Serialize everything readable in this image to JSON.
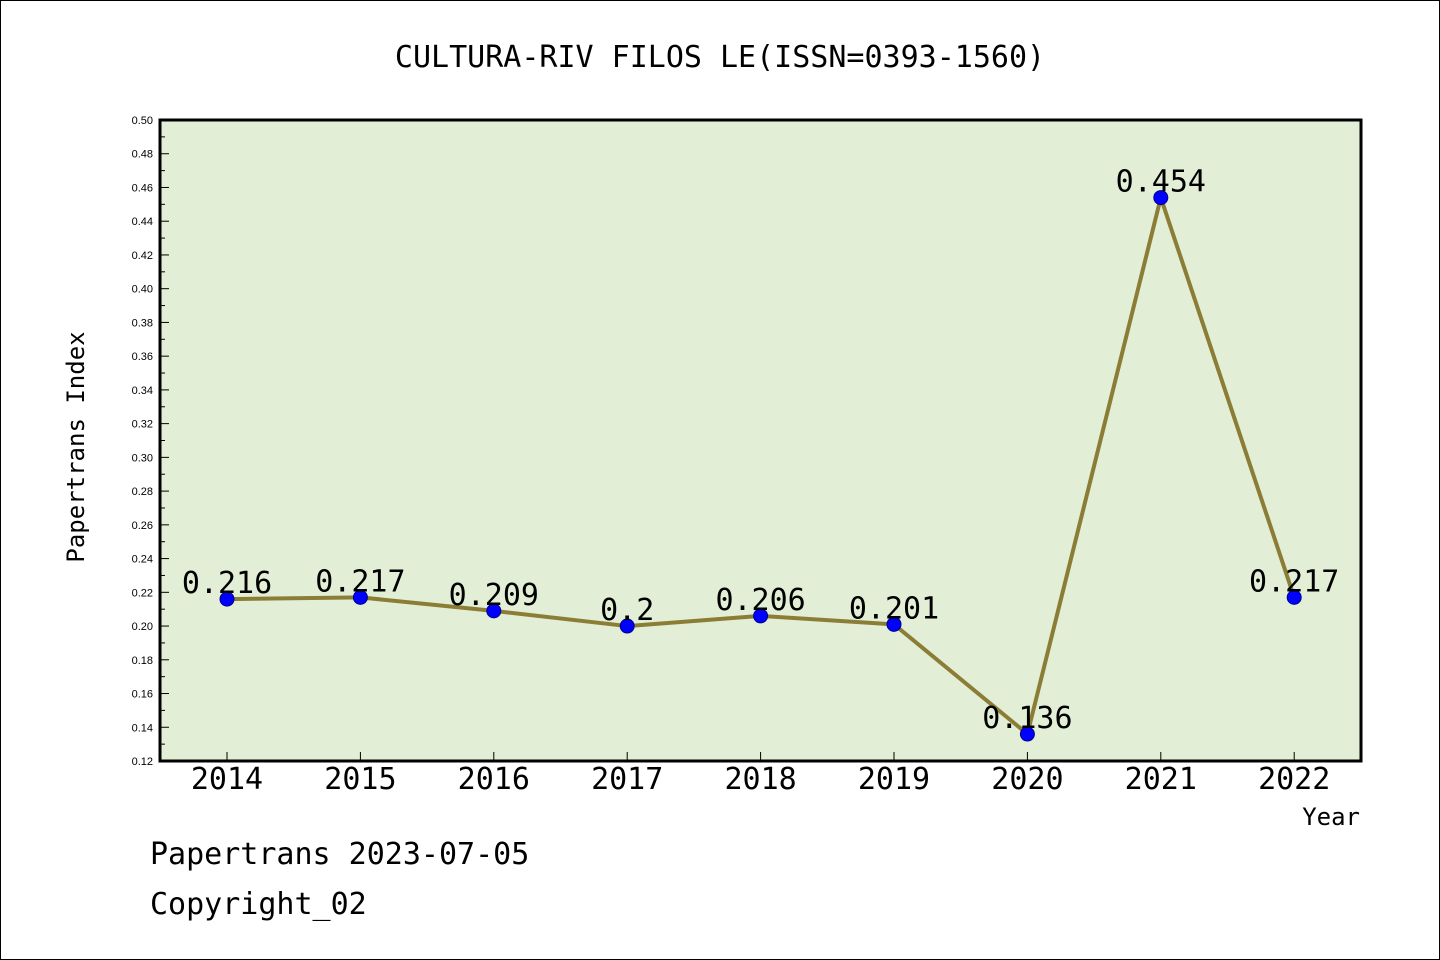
{
  "chart_data": {
    "type": "line",
    "title": "CULTURA-RIV FILOS LE(ISSN=0393-1560)",
    "xlabel": "Year",
    "ylabel": "Papertrans Index",
    "categories": [
      "2014",
      "2015",
      "2016",
      "2017",
      "2018",
      "2019",
      "2020",
      "2021",
      "2022"
    ],
    "series": [
      {
        "values": [
          0.216,
          0.217,
          0.209,
          0.2,
          0.206,
          0.201,
          0.136,
          0.454,
          0.217
        ]
      }
    ],
    "data_labels": [
      "0.216",
      "0.217",
      "0.209",
      "0.2",
      "0.206",
      "0.201",
      "0.136",
      "0.454",
      "0.217"
    ],
    "ylim": [
      0.12,
      0.5
    ],
    "yticks": [
      "0.12",
      "0.14",
      "0.16",
      "0.18",
      "0.20",
      "0.22",
      "0.24",
      "0.26",
      "0.28",
      "0.30",
      "0.32",
      "0.34",
      "0.36",
      "0.38",
      "0.40",
      "0.42",
      "0.44",
      "0.46",
      "0.48",
      "0.50"
    ],
    "grid": false,
    "colors": {
      "plot_background": "#e2efd6",
      "line": "#8b7d35",
      "marker": "#0000ff"
    }
  },
  "footer": {
    "line1": "Papertrans 2023-07-05",
    "line2": "Copyright_02"
  }
}
